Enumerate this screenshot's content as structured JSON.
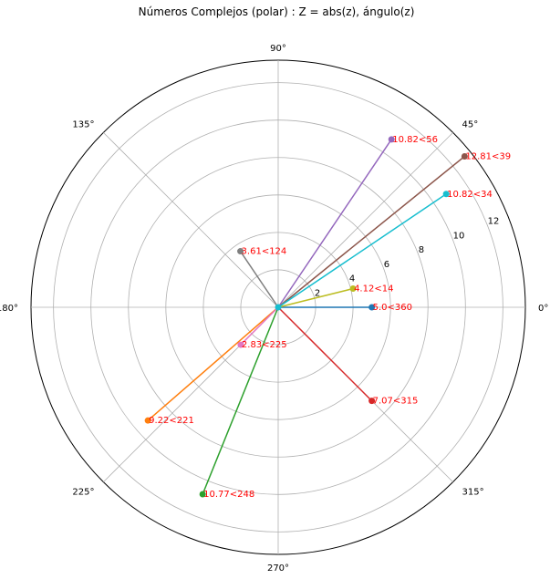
{
  "chart_data": {
    "type": "polar",
    "title": "Números Complejos (polar) : Z = abs(z), ángulo(z)",
    "rlim": [
      0,
      13.2
    ],
    "radial_ticks": [
      2,
      4,
      6,
      8,
      10,
      12
    ],
    "radial_tick_labels": [
      "2",
      "4",
      "6",
      "8",
      "10",
      "12"
    ],
    "angle_ticks": [
      0,
      45,
      90,
      135,
      180,
      225,
      270,
      315
    ],
    "angle_tick_labels": [
      "0°",
      "45°",
      "90°",
      "135°",
      "180°",
      "225°",
      "270°",
      "315°"
    ],
    "grid": true,
    "label_color": "#ff0000",
    "series": [
      {
        "r": 5.0,
        "theta": 360,
        "label": "5.0<360",
        "color": "#1f77b4"
      },
      {
        "r": 9.22,
        "theta": 221,
        "label": "9.22<221",
        "color": "#ff7f0e"
      },
      {
        "r": 10.77,
        "theta": 248,
        "label": "10.77<248",
        "color": "#2ca02c"
      },
      {
        "r": 7.07,
        "theta": 315,
        "label": "7.07<315",
        "color": "#d62728"
      },
      {
        "r": 10.82,
        "theta": 56,
        "label": "10.82<56",
        "color": "#9467bd"
      },
      {
        "r": 12.81,
        "theta": 39,
        "label": "12.81<39",
        "color": "#8c564b"
      },
      {
        "r": 2.83,
        "theta": 225,
        "label": "2.83<225",
        "color": "#e377c2"
      },
      {
        "r": 3.61,
        "theta": 124,
        "label": "3.61<124",
        "color": "#7f7f7f"
      },
      {
        "r": 4.12,
        "theta": 14,
        "label": "4.12<14",
        "color": "#bcbd22"
      },
      {
        "r": 10.82,
        "theta": 34,
        "label": "10.82<34",
        "color": "#17becf"
      }
    ]
  }
}
